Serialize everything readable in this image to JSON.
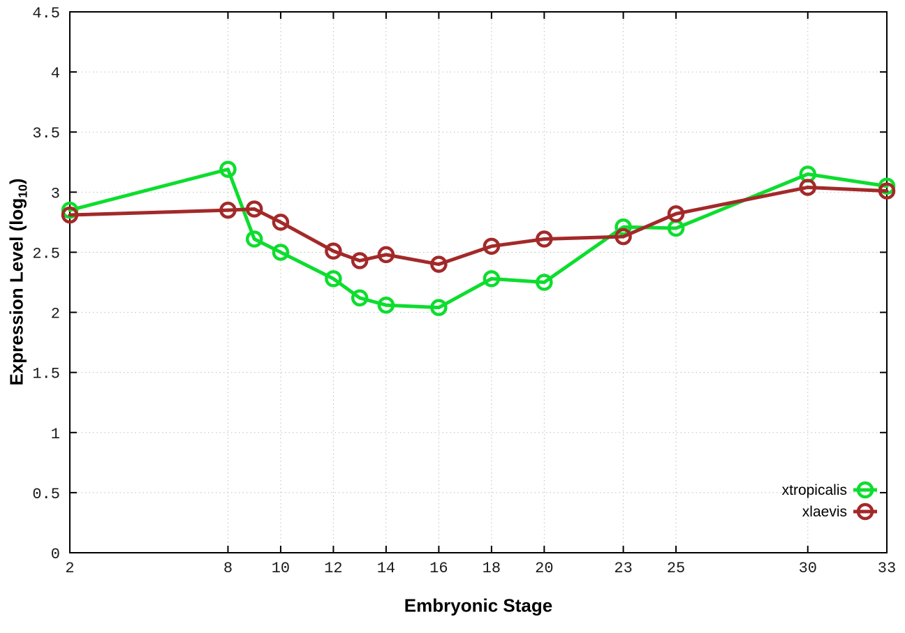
{
  "chart_data": {
    "type": "line",
    "title": "",
    "xlabel": "Embryonic Stage",
    "ylabel_prefix": "Expression Level (log",
    "ylabel_sub": "10",
    "ylabel_suffix": ")",
    "x": [
      2,
      8,
      9,
      10,
      12,
      13,
      14,
      16,
      18,
      20,
      23,
      25,
      30,
      33
    ],
    "series": [
      {
        "name": "xtropicalis",
        "color": "#0ddd2e",
        "values": [
          2.85,
          3.19,
          2.61,
          2.5,
          2.28,
          2.12,
          2.06,
          2.04,
          2.28,
          2.25,
          2.71,
          2.7,
          3.15,
          3.05
        ]
      },
      {
        "name": "xlaevis",
        "color": "#a32929",
        "values": [
          2.81,
          2.85,
          2.86,
          2.75,
          2.51,
          2.43,
          2.48,
          2.4,
          2.55,
          2.61,
          2.63,
          2.82,
          3.04,
          3.01
        ]
      }
    ],
    "xlim": [
      2,
      33
    ],
    "ylim": [
      0,
      4.5
    ],
    "x_ticks": [
      2,
      8,
      10,
      12,
      14,
      16,
      18,
      20,
      23,
      25,
      30,
      33
    ],
    "y_ticks": [
      0,
      0.5,
      1,
      1.5,
      2,
      2.5,
      3,
      3.5,
      4,
      4.5
    ],
    "grid": true,
    "marker": "open-circle",
    "legend_position": "bottom-right",
    "legend": [
      "xtropicalis",
      "xlaevis"
    ]
  },
  "colors": {
    "background": "#ffffff",
    "border": "#000000",
    "grid": "#bdbdbd",
    "tick_label": "#1a1a1a",
    "green_series": "#0ddd2e",
    "red_series": "#a32929"
  }
}
